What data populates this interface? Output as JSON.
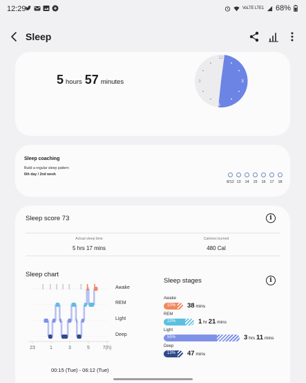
{
  "status_bar": {
    "time": "12:29",
    "notifications": [
      "twitter-icon",
      "email-icon",
      "gallery-icon",
      "app-icon"
    ],
    "network_label": "VoLTE LTE1",
    "battery": "68%"
  },
  "app_bar": {
    "title": "Sleep",
    "actions": [
      "share-icon",
      "stats-icon",
      "more-icon"
    ]
  },
  "duration": {
    "hours": "5",
    "hours_unit": "hours",
    "minutes": "57",
    "minutes_unit": "minutes",
    "clock_labels": [
      "12",
      "3",
      "6",
      "9"
    ],
    "sleep_start_hour": 0.25,
    "sleep_end_hour": 6.2,
    "accent": "#6c84e4"
  },
  "coaching": {
    "title": "Sleep coaching",
    "subtitle": "Build a regular sleep pattern",
    "progress": "6th day / 2nd week",
    "days": [
      "8/12",
      "13",
      "14",
      "15",
      "16",
      "17",
      "18"
    ]
  },
  "score": {
    "label": "Sleep score 73",
    "actual_label": "Actual sleep time",
    "actual_value": "5 hrs 17 mins",
    "calories_label": "Calories burned",
    "calories_value": "480 Cal"
  },
  "chart": {
    "title": "Sleep chart",
    "stage_labels": [
      "Awake",
      "REM",
      "Light",
      "Deep"
    ],
    "x_ticks": [
      "23",
      "1",
      "3",
      "5",
      "7(h)"
    ],
    "range": "00:15 (Tue) - 06:12 (Tue)"
  },
  "chart_data": {
    "type": "line",
    "title": "Sleep chart",
    "stage_levels": [
      "Awake",
      "REM",
      "Light",
      "Deep"
    ],
    "x_ticks": [
      "23",
      "1",
      "3",
      "5",
      "7(h)"
    ],
    "xlim": [
      23,
      31
    ],
    "series": [
      {
        "name": "Sleep stage",
        "points": [
          [
            0.25,
            "Light"
          ],
          [
            0.75,
            "Deep"
          ],
          [
            1.2,
            "Light"
          ],
          [
            1.55,
            "REM"
          ],
          [
            2.0,
            "Light"
          ],
          [
            2.2,
            "Deep"
          ],
          [
            2.9,
            "Light"
          ],
          [
            3.3,
            "REM"
          ],
          [
            3.8,
            "Light"
          ],
          [
            3.9,
            "Deep"
          ],
          [
            4.4,
            "Light"
          ],
          [
            4.7,
            "REM"
          ],
          [
            5.0,
            "Awake"
          ],
          [
            5.2,
            "REM"
          ],
          [
            5.8,
            "Awake"
          ],
          [
            6.2,
            "Awake"
          ]
        ]
      }
    ],
    "colors": {
      "Awake": "#f08a5d",
      "REM": "#5bc0e0",
      "Light": "#7f92e8",
      "Deep": "#2f4a8a"
    }
  },
  "stages": {
    "title": "Sleep stages",
    "items": [
      {
        "name": "Awake",
        "pct": "10%",
        "fraction": 0.1,
        "num1": "38",
        "unit1": "mins",
        "num2": "",
        "unit2": "",
        "color": "#f08a5d"
      },
      {
        "name": "REM",
        "pct": "22%",
        "fraction": 0.22,
        "num1": "1",
        "unit1": "hr",
        "num2": "21",
        "unit2": "mins",
        "color": "#5bc0e0"
      },
      {
        "name": "Light",
        "pct": "55%",
        "fraction": 0.55,
        "num1": "3",
        "unit1": "hrs",
        "num2": "11",
        "unit2": "mins",
        "color": "#7f92e8"
      },
      {
        "name": "Deep",
        "pct": "13%",
        "fraction": 0.13,
        "num1": "47",
        "unit1": "mins",
        "num2": "",
        "unit2": "",
        "color": "#2f4a8a"
      }
    ]
  }
}
